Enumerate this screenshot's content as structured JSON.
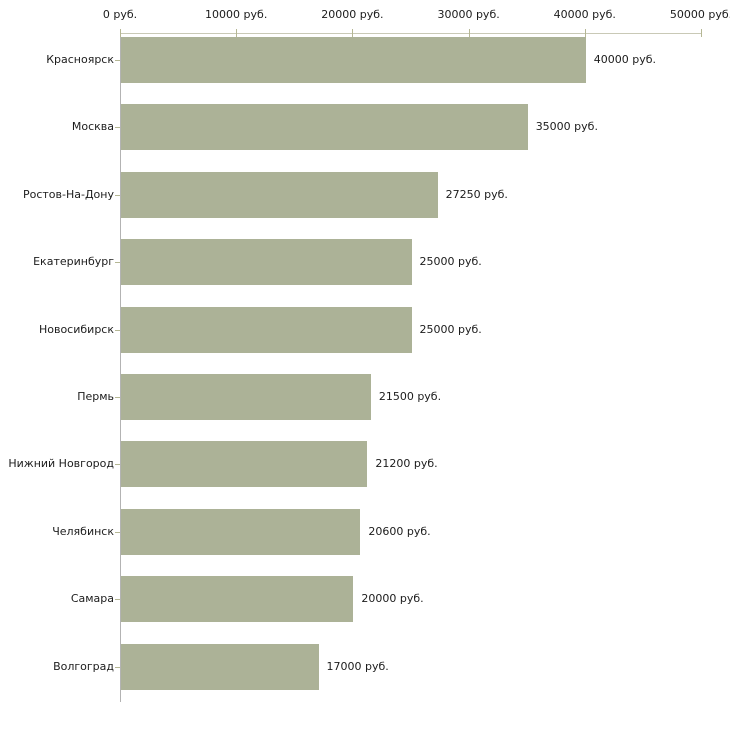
{
  "chart_data": {
    "type": "bar",
    "orientation": "horizontal",
    "title": "",
    "xlabel": "",
    "ylabel": "",
    "unit": "руб.",
    "categories": [
      "Красноярск",
      "Москва",
      "Ростов-На-Дону",
      "Екатеринбург",
      "Новосибирск",
      "Пермь",
      "Нижний Новгород",
      "Челябинск",
      "Самара",
      "Волгоград"
    ],
    "values": [
      40000,
      35000,
      27250,
      25000,
      25000,
      21500,
      21200,
      20600,
      20000,
      17000
    ],
    "value_labels": [
      "40000 руб.",
      "35000 руб.",
      "27250 руб.",
      "25000 руб.",
      "25000 руб.",
      "21500 руб.",
      "21200 руб.",
      "20600 руб.",
      "20000 руб.",
      "17000 руб."
    ],
    "x_ticks": [
      0,
      10000,
      20000,
      30000,
      40000,
      50000
    ],
    "x_tick_labels": [
      "0 руб.",
      "10000 руб.",
      "20000 руб.",
      "30000 руб.",
      "40000 руб.",
      "50000 руб."
    ],
    "xlim": [
      0,
      50000
    ],
    "grid": false,
    "legend": null,
    "colors": {
      "bar_fill": "#acb297",
      "x_axis_line": "#c9c9b6",
      "y_axis_line": "#b3b3b3",
      "tick_mark": "#b5b794",
      "text": "#1c1c1c",
      "background": "#ffffff"
    }
  }
}
